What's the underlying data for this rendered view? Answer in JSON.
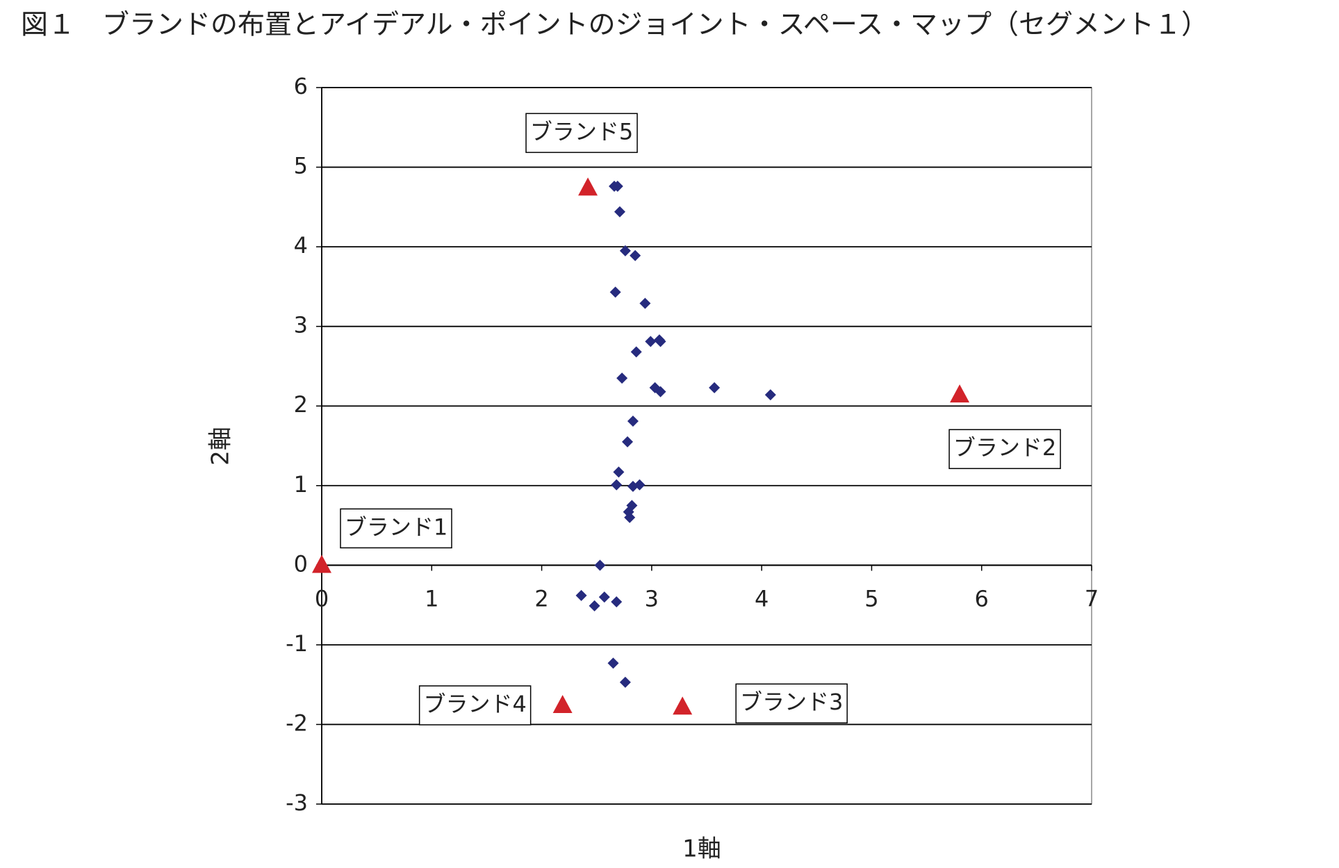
{
  "chart_data": {
    "type": "scatter",
    "title": "図１　ブランドの布置とアイデアル・ポイントのジョイント・スペース・マップ（セグメント１）",
    "x_label": "1軸",
    "y_label": "2軸",
    "xlim": [
      0,
      7
    ],
    "xticks": [
      0,
      1,
      2,
      3,
      4,
      5,
      6,
      7
    ],
    "ylim": [
      -3,
      6
    ],
    "yticks": [
      -3,
      -2,
      -1,
      0,
      1,
      2,
      3,
      4,
      5,
      6
    ],
    "grid": true,
    "series": [
      {
        "marker": "diamond",
        "color": "#262b7e",
        "x": [
          2.66,
          2.69,
          2.71,
          2.76,
          2.85,
          2.67,
          2.94,
          2.99,
          3.07,
          3.08,
          2.86,
          2.73,
          3.03,
          3.08,
          3.57,
          4.08,
          2.83,
          2.78,
          2.7,
          2.68,
          2.83,
          2.89,
          2.82,
          2.79,
          2.8,
          2.53,
          2.36,
          2.57,
          2.48,
          2.68,
          2.65,
          2.76
        ],
        "values": [
          4.76,
          4.76,
          4.44,
          3.95,
          3.89,
          3.43,
          3.29,
          2.81,
          2.83,
          2.81,
          2.68,
          2.35,
          2.23,
          2.18,
          2.23,
          2.14,
          1.81,
          1.55,
          1.17,
          1.01,
          0.99,
          1.01,
          0.75,
          0.67,
          0.6,
          0.0,
          -0.38,
          -0.4,
          -0.51,
          -0.46,
          -1.23,
          -1.47
        ]
      },
      {
        "marker": "triangle",
        "color": "#d2232a",
        "x": [
          0,
          2.42,
          5.8,
          2.19,
          3.28
        ],
        "values": [
          0,
          4.74,
          2.14,
          -1.76,
          -1.78
        ],
        "labels": [
          "ブランド1",
          "ブランド5",
          "ブランド2",
          "ブランド4",
          "ブランド3"
        ]
      }
    ]
  }
}
